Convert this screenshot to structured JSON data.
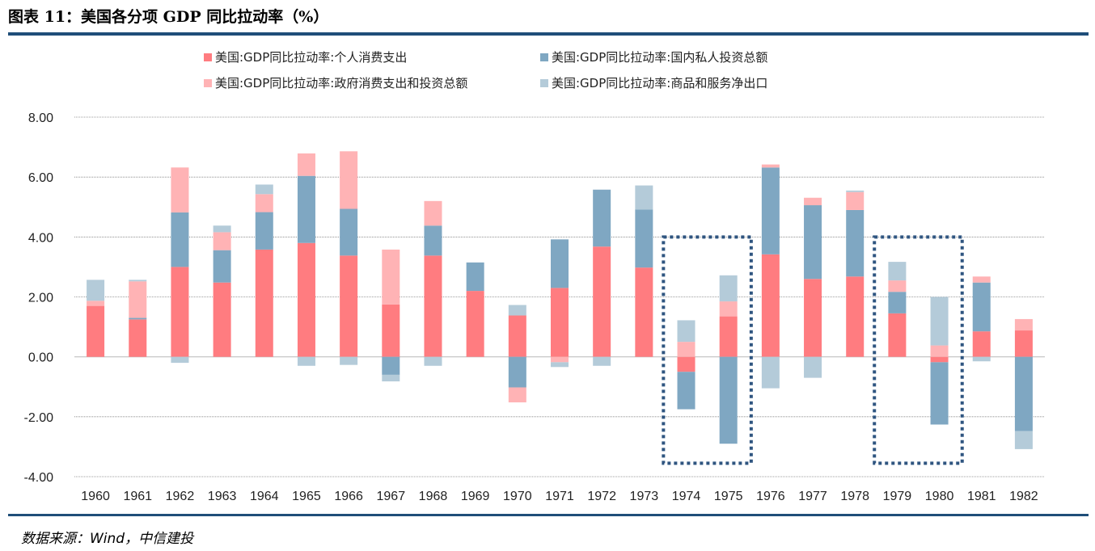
{
  "header": {
    "title": "图表 11：美国各分项 GDP 同比拉动率（%）"
  },
  "footer": {
    "source": "数据来源：Wind，中信建投"
  },
  "chart_data": {
    "type": "bar",
    "stacked": true,
    "categories": [
      "1960",
      "1961",
      "1962",
      "1963",
      "1964",
      "1965",
      "1966",
      "1967",
      "1968",
      "1969",
      "1970",
      "1971",
      "1972",
      "1973",
      "1974",
      "1975",
      "1976",
      "1977",
      "1978",
      "1979",
      "1980",
      "1981",
      "1982"
    ],
    "series": [
      {
        "name": "美国:GDP同比拉动率:个人消费支出",
        "color": "#ff7c80",
        "values": [
          1.7,
          1.25,
          3.0,
          2.48,
          3.58,
          3.8,
          3.38,
          1.75,
          3.38,
          2.2,
          1.38,
          2.3,
          3.68,
          2.98,
          -0.5,
          1.35,
          3.42,
          2.6,
          2.68,
          1.45,
          -0.18,
          0.85,
          0.88
        ]
      },
      {
        "name": "美国:GDP同比拉动率:国内私人投资总额",
        "color": "#7fa7c2",
        "values": [
          0.0,
          0.05,
          1.82,
          1.08,
          1.25,
          2.24,
          1.56,
          -0.6,
          1.0,
          0.95,
          -1.02,
          1.62,
          1.9,
          1.94,
          -1.25,
          -2.9,
          2.9,
          2.46,
          2.22,
          0.72,
          -2.08,
          1.63,
          -2.48
        ]
      },
      {
        "name": "美国:GDP同比拉动率:政府消费支出和投资总额",
        "color": "#ffb3b5",
        "values": [
          0.17,
          1.22,
          1.5,
          0.6,
          0.6,
          0.75,
          1.92,
          1.83,
          0.82,
          0.0,
          -0.5,
          -0.18,
          0.0,
          0.0,
          0.5,
          0.5,
          0.1,
          0.25,
          0.6,
          0.38,
          0.38,
          0.2,
          0.38
        ]
      },
      {
        "name": "美国:GDP同比拉动率:商品和服务净出口",
        "color": "#b4cbd9",
        "values": [
          0.7,
          0.05,
          -0.2,
          0.22,
          0.32,
          -0.3,
          -0.27,
          -0.22,
          -0.3,
          0.0,
          0.35,
          -0.16,
          -0.3,
          0.8,
          0.72,
          0.87,
          -1.05,
          -0.7,
          0.05,
          0.62,
          1.62,
          -0.15,
          -0.6
        ]
      }
    ],
    "ylim": [
      -4,
      8
    ],
    "yticks": [
      "-4.00",
      "-2.00",
      "0.00",
      "2.00",
      "4.00",
      "6.00",
      "8.00"
    ],
    "annotations": [
      "dotted box around 1974-1975",
      "dotted box around 1979-1980"
    ]
  }
}
